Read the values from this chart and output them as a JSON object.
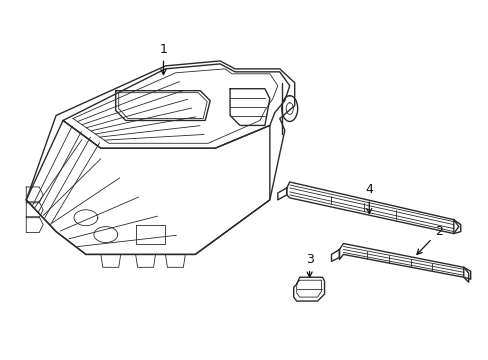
{
  "background_color": "#ffffff",
  "line_color": "#2a2a2a",
  "line_width": 1.0,
  "thin_lw": 0.6,
  "label_color": "#111111",
  "label_fontsize": 9,
  "arrow_color": "#111111"
}
